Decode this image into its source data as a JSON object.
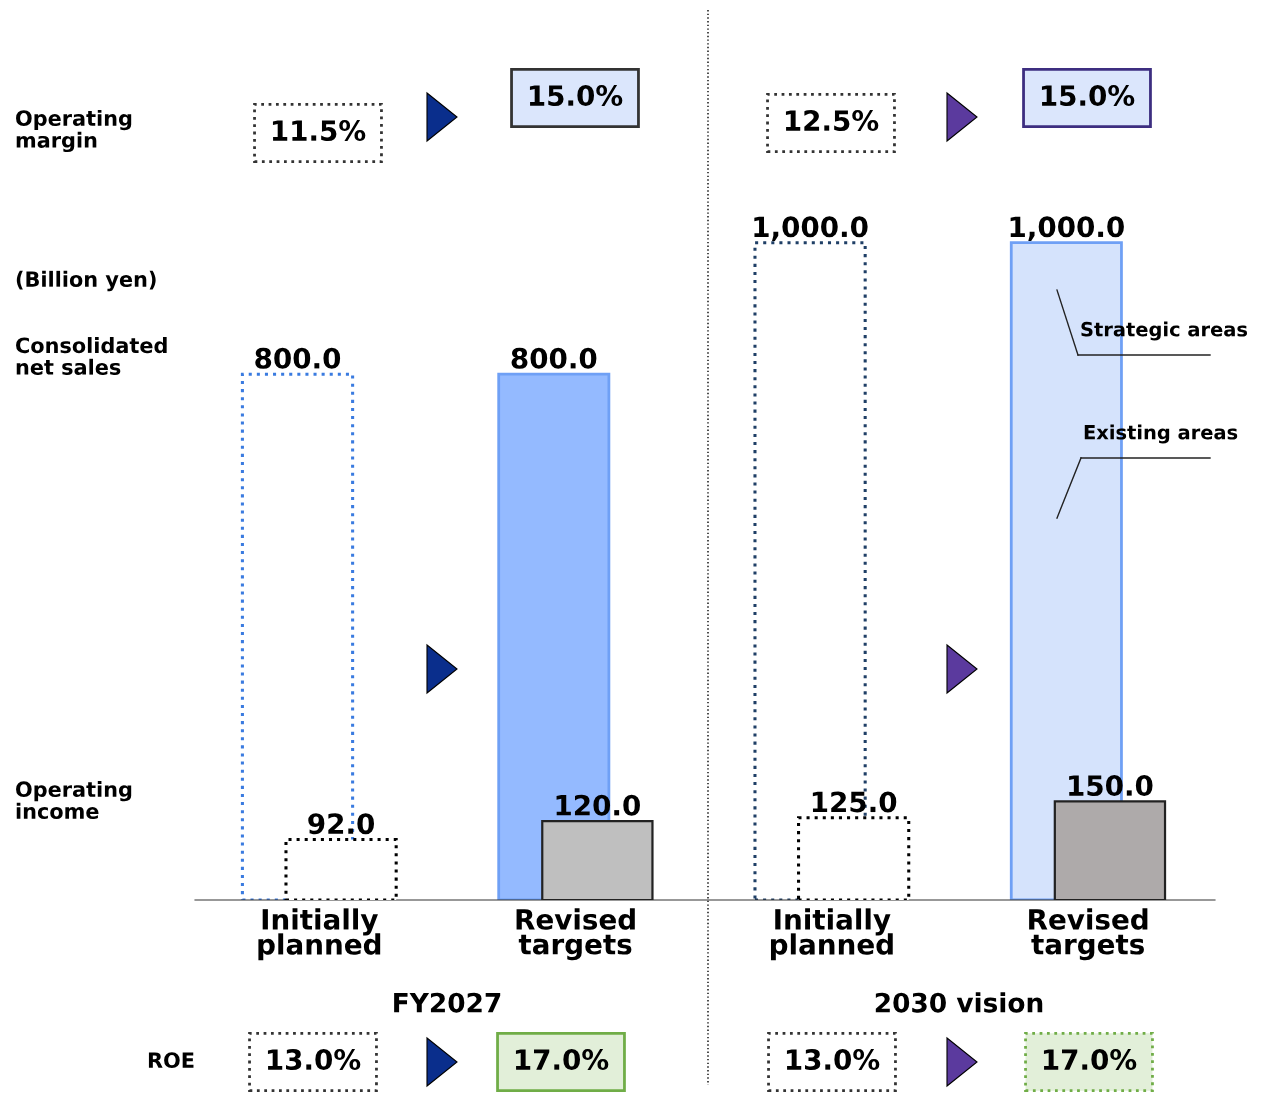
{
  "chart_data": {
    "type": "bar",
    "categories": [
      "Initially planned",
      "Revised targets",
      "Initially planned",
      "Revised targets"
    ],
    "series": [
      {
        "colors": [
          "#ffffff",
          "#94baff",
          "#ffffff",
          "#d5e3fc"
        ],
        "values": [
          800.0,
          800.0,
          1000.0,
          1000.0
        ],
        "value_labels": [
          "800.0",
          "800.0",
          "1,000.0",
          "1,000.0"
        ]
      },
      {
        "colors": [
          "#ffffff",
          "#bfbfbf",
          "#ffffff",
          "#aeaaaa"
        ],
        "values": [
          92.0,
          120.0,
          125.0,
          150.0
        ],
        "value_labels": [
          "92.0",
          "120.0",
          "125.0",
          "150.0"
        ]
      }
    ],
    "annotations": [
      "Operating margin",
      "11.5%",
      "15.0%",
      "12.5%",
      "15.0%",
      "(Billion yen)",
      "Strategic areas",
      "Existing areas",
      "FY2027",
      "2030 vision",
      "ROE",
      "13.0%",
      "17.0%",
      "13.0%",
      "17.0%",
      "Consolidated net sales",
      "Operating income"
    ],
    "grid": false
  }
}
